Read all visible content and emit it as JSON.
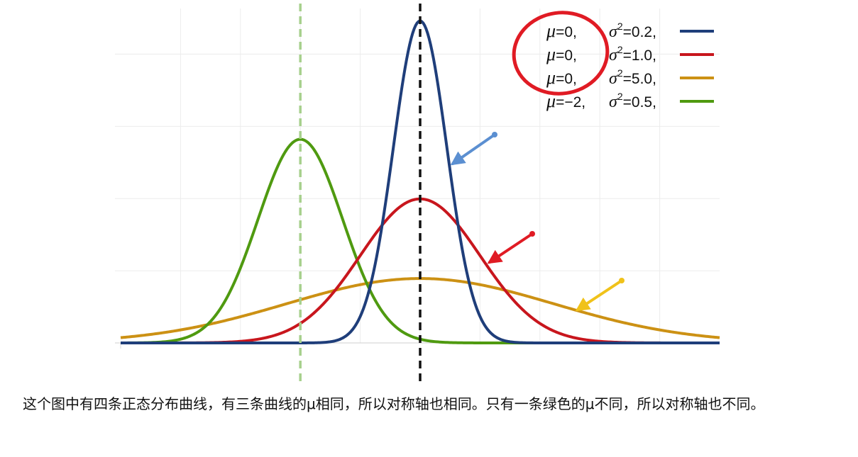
{
  "chart_data": {
    "type": "line",
    "xlim": [
      -5,
      5
    ],
    "ylim": [
      0,
      0.95
    ],
    "x_gridlines": [
      -4,
      -3,
      -2,
      -1,
      0,
      1,
      2,
      3,
      4
    ],
    "y_gridlines": [
      0,
      0.2,
      0.4,
      0.6,
      0.8
    ],
    "grid": true,
    "legend_placement": "top-right",
    "series": [
      {
        "name": "μ=0, σ²=0.2,",
        "mu_label": "μ",
        "mu_value": "=0,",
        "sigma_label": "σ",
        "sigma_value": "=0.2,",
        "mu": 0,
        "variance": 0.2,
        "color": "#1f3e7a"
      },
      {
        "name": "μ=0, σ²=1.0,",
        "mu_label": "μ",
        "mu_value": "=0,",
        "sigma_label": "σ",
        "sigma_value": "=1.0,",
        "mu": 0,
        "variance": 1.0,
        "color": "#c8161d"
      },
      {
        "name": "μ=0, σ²=5.0,",
        "mu_label": "μ",
        "mu_value": "=0,",
        "sigma_label": "σ",
        "sigma_value": "=5.0,",
        "mu": 0,
        "variance": 5.0,
        "color": "#cc9114"
      },
      {
        "name": "μ=−2, σ²=0.5,",
        "mu_label": "μ",
        "mu_value": "=−2,",
        "sigma_label": "σ",
        "sigma_value": "=0.5,",
        "mu": -2,
        "variance": 0.5,
        "color": "#4f9a10"
      }
    ],
    "symmetry_axes": [
      {
        "x": 0,
        "color": "#111111",
        "style": "dashed"
      },
      {
        "x": -2,
        "color": "#a7d08c",
        "style": "dashed"
      }
    ],
    "annotations": {
      "highlight_circle_color": "#e01b24",
      "arrows": [
        {
          "points_to_series": 0,
          "color": "#5b8fd1"
        },
        {
          "points_to_series": 1,
          "color": "#e01b24"
        },
        {
          "points_to_series": 2,
          "color": "#f0c21a"
        }
      ]
    }
  },
  "caption": "这个图中有四条正态分布曲线，有三条曲线的μ相同，所以对称轴也相同。只有一条绿色的μ不同，所以对称轴也不同。"
}
